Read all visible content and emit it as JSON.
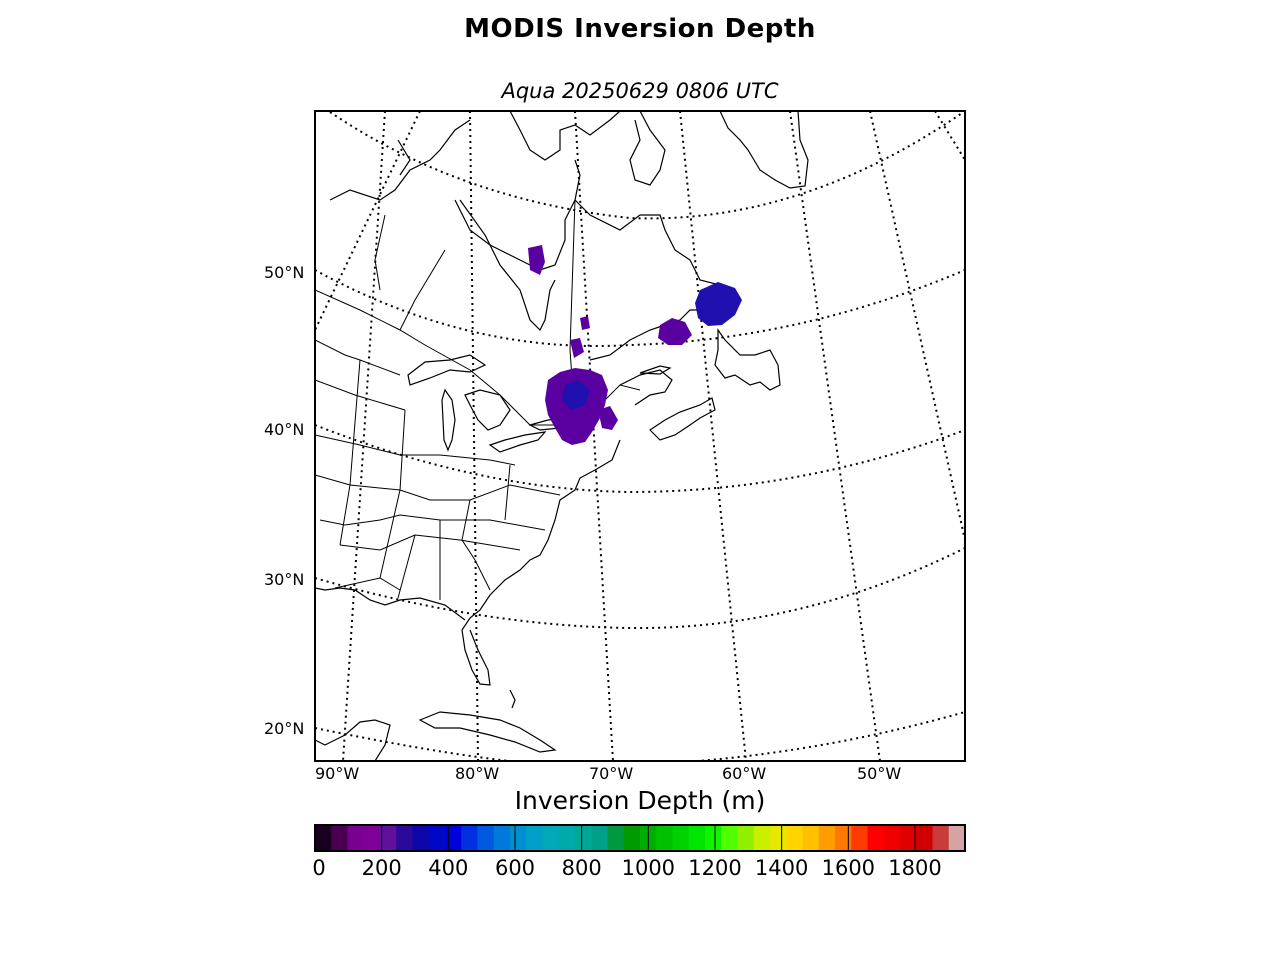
{
  "title": "MODIS Inversion Depth",
  "subtitle": "Aqua 20250629 0806 UTC",
  "map": {
    "lat_labels": [
      {
        "text": "50°N",
        "value": 50
      },
      {
        "text": "40°N",
        "value": 40
      },
      {
        "text": "30°N",
        "value": 30
      },
      {
        "text": "20°N",
        "value": 20
      }
    ],
    "lon_labels": [
      {
        "text": "90°W",
        "value": -90
      },
      {
        "text": "80°W",
        "value": -80
      },
      {
        "text": "70°W",
        "value": -70
      },
      {
        "text": "60°W",
        "value": -60
      },
      {
        "text": "50°W",
        "value": -50
      }
    ],
    "graticule": "dotted"
  },
  "colorbar": {
    "label": "Inversion Depth (m)",
    "range": [
      0,
      1950
    ],
    "ticks": [
      {
        "text": "0",
        "value": 0
      },
      {
        "text": "200",
        "value": 200
      },
      {
        "text": "400",
        "value": 400
      },
      {
        "text": "600",
        "value": 600
      },
      {
        "text": "800",
        "value": 800
      },
      {
        "text": "1000",
        "value": 1000
      },
      {
        "text": "1200",
        "value": 1200
      },
      {
        "text": "1400",
        "value": 1400
      },
      {
        "text": "1600",
        "value": 1600
      },
      {
        "text": "1800",
        "value": 1800
      }
    ],
    "colors": [
      "#1a0020",
      "#4a0050",
      "#7a0090",
      "#7f0096",
      "#60109a",
      "#2a0a9a",
      "#0e06a8",
      "#0008c6",
      "#0000dd",
      "#0030e0",
      "#005ae0",
      "#0078dc",
      "#0090d0",
      "#00a0c8",
      "#00a8b8",
      "#00aaaa",
      "#00a898",
      "#00a088",
      "#009840",
      "#009a00",
      "#00ae00",
      "#00c000",
      "#00d200",
      "#00e600",
      "#10f400",
      "#50ff00",
      "#90f000",
      "#c8f000",
      "#e6e800",
      "#ffd400",
      "#ffc000",
      "#ff9c00",
      "#ff7800",
      "#ff3c00",
      "#ff0000",
      "#f00000",
      "#e00000",
      "#d00000",
      "#c83c3c",
      "#d4a4a4"
    ]
  },
  "colors": {
    "inversion_dark_purple": "#5a00a0",
    "inversion_blue": "#2010b0"
  }
}
